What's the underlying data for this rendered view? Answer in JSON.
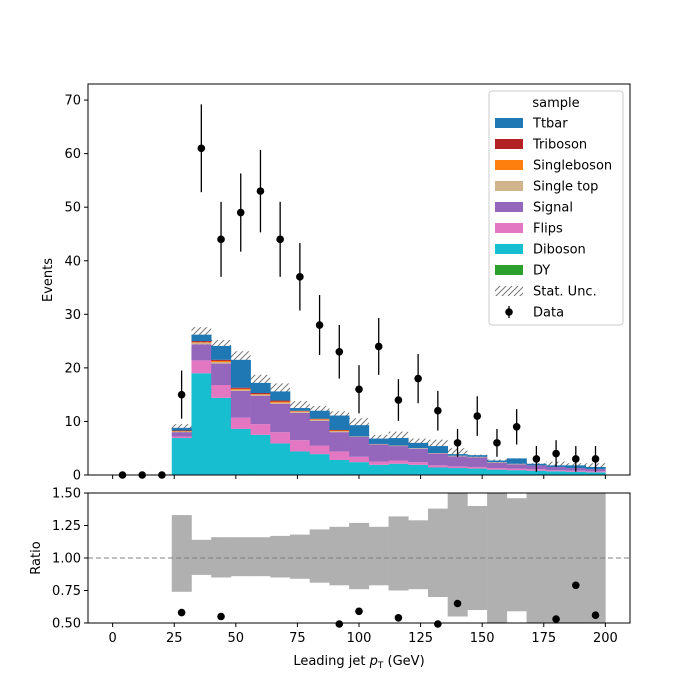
{
  "chart_data": [
    {
      "type": "bar",
      "stacked": true,
      "ylabel": "Events",
      "xlim": [
        -10,
        210
      ],
      "ylim": [
        0,
        73
      ],
      "x_ticks": [
        0,
        25,
        50,
        75,
        100,
        125,
        150,
        175,
        200
      ],
      "y_ticks": [
        0,
        10,
        20,
        30,
        40,
        50,
        60,
        70
      ],
      "bin_edges": [
        24,
        32,
        40,
        48,
        56,
        64,
        72,
        80,
        88,
        96,
        104,
        112,
        120,
        128,
        136,
        144,
        152,
        160,
        168,
        176,
        184,
        192,
        200
      ],
      "legend_title": "sample",
      "legend_position": "upper right",
      "series": [
        {
          "name": "Diboson",
          "color": "#17becf",
          "values": [
            6.9,
            19.0,
            14.4,
            8.6,
            7.5,
            5.9,
            4.4,
            3.9,
            2.8,
            2.4,
            1.9,
            2.1,
            1.9,
            1.4,
            1.3,
            1.2,
            1.0,
            0.9,
            0.8,
            0.7,
            0.6,
            0.5
          ]
        },
        {
          "name": "Flips",
          "color": "#e377c2",
          "values": [
            0.3,
            2.4,
            2.4,
            2.1,
            2.0,
            2.1,
            2.1,
            1.6,
            1.6,
            1.0,
            0.6,
            0.6,
            0.5,
            0.4,
            0.3,
            0.3,
            0.3,
            0.3,
            0.3,
            0.2,
            0.2,
            0.2
          ]
        },
        {
          "name": "Signal",
          "color": "#9467bd",
          "values": [
            0.8,
            3.0,
            4.0,
            5.0,
            5.3,
            5.3,
            5.1,
            4.6,
            3.6,
            3.7,
            3.2,
            2.7,
            2.5,
            2.2,
            1.9,
            1.8,
            1.0,
            0.8,
            0.7,
            0.6,
            0.5,
            0.4
          ]
        },
        {
          "name": "Single top",
          "color": "#d2b48c",
          "values": [
            0.1,
            0.3,
            0.3,
            0.2,
            0.2,
            0.2,
            0.2,
            0.2,
            0.2,
            0.1,
            0.1,
            0.1,
            0.1,
            0.1,
            0.1,
            0.1,
            0.1,
            0.1,
            0.0,
            0.0,
            0.0,
            0.0
          ]
        },
        {
          "name": "Singleboson",
          "color": "#ff7f0e",
          "values": [
            0.1,
            0.1,
            0.2,
            0.2,
            0.1,
            0.2,
            0.1,
            0.1,
            0.1,
            0.0,
            0.0,
            0.0,
            0.0,
            0.0,
            0.0,
            0.0,
            0.0,
            0.0,
            0.0,
            0.0,
            0.0,
            0.0
          ]
        },
        {
          "name": "Triboson",
          "color": "#b22222",
          "values": [
            0.1,
            0.2,
            0.2,
            0.2,
            0.2,
            0.2,
            0.1,
            0.1,
            0.1,
            0.0,
            0.0,
            0.0,
            0.0,
            0.0,
            0.0,
            0.0,
            0.0,
            0.0,
            0.0,
            0.0,
            0.0,
            0.0
          ]
        },
        {
          "name": "Ttbar",
          "color": "#1f77b4",
          "values": [
            0.5,
            1.2,
            2.6,
            5.2,
            1.9,
            1.7,
            0.5,
            1.5,
            2.7,
            2.1,
            1.0,
            1.4,
            1.0,
            1.3,
            0.3,
            0.3,
            0.3,
            1.0,
            0.3,
            0.3,
            0.5,
            0.4
          ]
        },
        {
          "name": "DY",
          "color": "#2ca02c",
          "values": []
        }
      ],
      "stat_unc": {
        "name": "Stat. Unc.",
        "hatch": "////",
        "upper": [
          9.5,
          27.6,
          25.2,
          23.1,
          18.7,
          17.1,
          13.8,
          12.9,
          11.9,
          10.6,
          7.5,
          8.1,
          6.8,
          6.6,
          5.0,
          3.8,
          2.9,
          3.1,
          2.2,
          2.5,
          2.2,
          2.2
        ],
        "lower": [
          7.1,
          23.8,
          22.9,
          20.9,
          16.9,
          15.1,
          12.1,
          11.1,
          10.1,
          8.3,
          5.9,
          6.3,
          5.1,
          4.5,
          3.5,
          2.7,
          1.9,
          2.0,
          1.4,
          1.5,
          1.4,
          1.3
        ]
      },
      "data": {
        "name": "Data",
        "x": [
          4,
          12,
          20,
          28,
          36,
          44,
          52,
          60,
          68,
          76,
          84,
          92,
          100,
          108,
          116,
          124,
          132,
          140,
          148,
          156,
          164,
          172,
          180,
          188,
          196
        ],
        "y": [
          0,
          0,
          0,
          15,
          61,
          44,
          49,
          53,
          44,
          37,
          28,
          23,
          16,
          24,
          14,
          18,
          12,
          6,
          11,
          6,
          9,
          3,
          4,
          3,
          3
        ],
        "yerr": [
          0,
          0,
          0,
          4.5,
          8.2,
          7.0,
          7.3,
          7.7,
          7.0,
          6.3,
          5.6,
          5.0,
          4.5,
          5.3,
          3.9,
          4.6,
          3.7,
          2.6,
          3.7,
          2.6,
          3.3,
          2.4,
          2.5,
          2.4,
          2.4
        ]
      }
    },
    {
      "type": "scatter",
      "ylabel": "Ratio",
      "xlabel_main": "Leading jet  ",
      "xlabel_symbol": "p",
      "xlabel_sub": "T",
      "xlabel_unit": " (GeV)",
      "xlim": [
        -10,
        210
      ],
      "ylim": [
        0.5,
        1.5
      ],
      "x_ticks": [
        0,
        25,
        50,
        75,
        100,
        125,
        150,
        175,
        200
      ],
      "y_ticks": [
        0.5,
        0.75,
        1.0,
        1.25,
        1.5
      ],
      "y_tick_labels": [
        "0.50",
        "0.75",
        "1.00",
        "1.25",
        "1.50"
      ],
      "reference_line": 1.0,
      "unc_band_color": "#b0b0b0",
      "unc_band": [
        {
          "x0": 24,
          "x1": 32,
          "lo": 0.74,
          "hi": 1.33
        },
        {
          "x0": 32,
          "x1": 40,
          "lo": 0.87,
          "hi": 1.14
        },
        {
          "x0": 40,
          "x1": 48,
          "lo": 0.85,
          "hi": 1.16
        },
        {
          "x0": 48,
          "x1": 56,
          "lo": 0.86,
          "hi": 1.16
        },
        {
          "x0": 56,
          "x1": 64,
          "lo": 0.86,
          "hi": 1.16
        },
        {
          "x0": 64,
          "x1": 72,
          "lo": 0.85,
          "hi": 1.17
        },
        {
          "x0": 72,
          "x1": 80,
          "lo": 0.84,
          "hi": 1.18
        },
        {
          "x0": 80,
          "x1": 88,
          "lo": 0.81,
          "hi": 1.22
        },
        {
          "x0": 88,
          "x1": 96,
          "lo": 0.79,
          "hi": 1.24
        },
        {
          "x0": 96,
          "x1": 104,
          "lo": 0.76,
          "hi": 1.27
        },
        {
          "x0": 104,
          "x1": 112,
          "lo": 0.79,
          "hi": 1.24
        },
        {
          "x0": 112,
          "x1": 120,
          "lo": 0.75,
          "hi": 1.32
        },
        {
          "x0": 120,
          "x1": 128,
          "lo": 0.76,
          "hi": 1.29
        },
        {
          "x0": 128,
          "x1": 136,
          "lo": 0.7,
          "hi": 1.38
        },
        {
          "x0": 136,
          "x1": 144,
          "lo": 0.55,
          "hi": 1.5
        },
        {
          "x0": 144,
          "x1": 152,
          "lo": 0.6,
          "hi": 1.4
        },
        {
          "x0": 152,
          "x1": 160,
          "lo": 0.5,
          "hi": 1.5
        },
        {
          "x0": 160,
          "x1": 168,
          "lo": 0.59,
          "hi": 1.46
        },
        {
          "x0": 168,
          "x1": 176,
          "lo": 0.5,
          "hi": 1.5
        },
        {
          "x0": 176,
          "x1": 184,
          "lo": 0.5,
          "hi": 1.5
        },
        {
          "x0": 184,
          "x1": 192,
          "lo": 0.5,
          "hi": 1.5
        },
        {
          "x0": 192,
          "x1": 200,
          "lo": 0.5,
          "hi": 1.5
        }
      ],
      "points": {
        "x": [
          28,
          44,
          92,
          100,
          116,
          132,
          140,
          180,
          188,
          196
        ],
        "y": [
          0.58,
          0.55,
          0.49,
          0.59,
          0.54,
          0.49,
          0.65,
          0.53,
          0.79,
          0.56
        ]
      }
    }
  ]
}
